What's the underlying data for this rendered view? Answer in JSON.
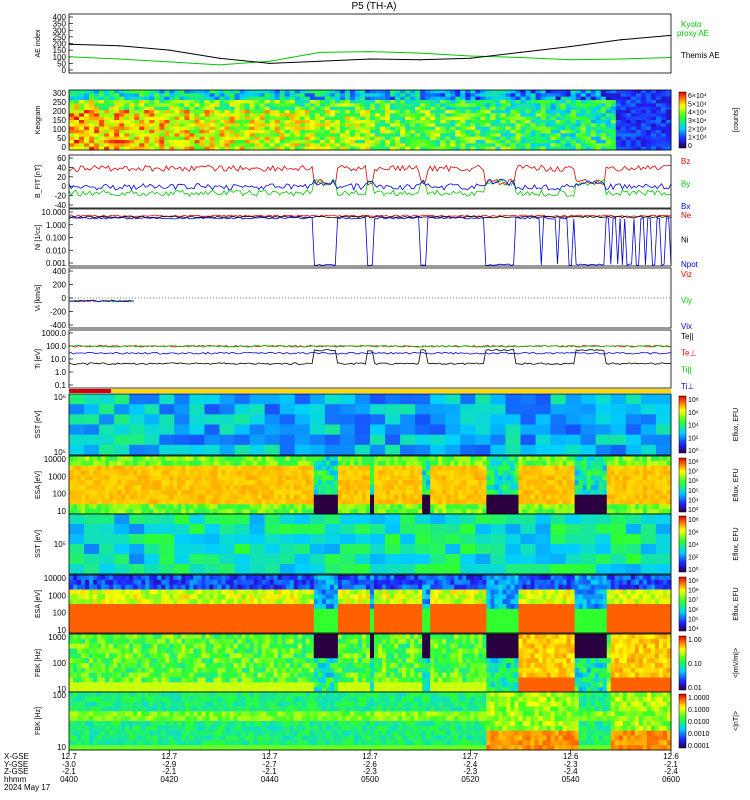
{
  "title": "P5 (TH-A)",
  "date_label": "2024 May 17",
  "colors": {
    "black": "#000000",
    "red": "#e00000",
    "green": "#00c800",
    "blue": "#0000e0",
    "yellow": "#ffe000",
    "bar_red": "#d00000",
    "bar_yellow": "#ffd800"
  },
  "orbit_rows": {
    "labels": [
      "X-GSE",
      "Y-GSE",
      "Z-GSE",
      "hhmm"
    ],
    "columns": [
      {
        "x": "12.7",
        "y": "-3.0",
        "z": "-2.1",
        "t": "0400"
      },
      {
        "x": "12.7",
        "y": "-2.9",
        "z": "-2.1",
        "t": "0420"
      },
      {
        "x": "12.7",
        "y": "-2.7",
        "z": "-2.1",
        "t": "0440"
      },
      {
        "x": "12.7",
        "y": "-2.6",
        "z": "-2.3",
        "t": "0500"
      },
      {
        "x": "12.7",
        "y": "-2.4",
        "z": "-2.3",
        "t": "0520"
      },
      {
        "x": "12.6",
        "y": "-2.3",
        "z": "-2.4",
        "t": "0540"
      },
      {
        "x": "12.6",
        "y": "-2.1",
        "z": "-2.4",
        "t": "0600"
      }
    ]
  },
  "chart_data": [
    {
      "type": "line",
      "name": "ae",
      "ylabel": "AE index",
      "ylim": [
        0,
        400
      ],
      "yticks": [
        "400",
        "350",
        "300",
        "250",
        "200",
        "150",
        "100",
        "50",
        "0"
      ],
      "legend": [
        "Kyoto",
        "proxy AE",
        "Themis AE"
      ],
      "x_minutes": [
        0,
        10,
        20,
        30,
        40,
        50,
        60,
        70,
        80,
        90,
        100,
        110,
        120
      ],
      "series": [
        {
          "name": "Kyoto proxy AE",
          "color": "green",
          "values": [
            110,
            95,
            75,
            55,
            80,
            140,
            145,
            135,
            115,
            105,
            90,
            95,
            105
          ]
        },
        {
          "name": "Themis AE",
          "color": "black",
          "values": [
            195,
            185,
            155,
            100,
            65,
            80,
            95,
            90,
            100,
            140,
            180,
            225,
            255
          ]
        }
      ]
    },
    {
      "type": "heatmap",
      "name": "keogram",
      "ylabel": "Keogram",
      "yticks": [
        "300",
        "250",
        "200",
        "150",
        "100",
        "50",
        "0"
      ],
      "colorbar_ticks": [
        "6×10⁴",
        "5×10⁴",
        "4×10⁴",
        "3×10⁴",
        "2×10⁴",
        "1×10⁴",
        "0"
      ],
      "colorbar_label": "[counts]"
    },
    {
      "type": "line",
      "name": "bfield",
      "ylabel": "B_FIT [nT]",
      "yticks": [
        "60",
        "40",
        "20",
        "0",
        "-20",
        "-40"
      ],
      "legend": [
        "Bz",
        "By",
        "Bx"
      ]
    },
    {
      "type": "line",
      "name": "density",
      "ylabel": "Ni [1/cc]",
      "yticks": [
        "10.000",
        "1.000",
        "0.100",
        "0.010",
        "0.001"
      ],
      "legend": [
        "Ne",
        "Ni",
        "Npot"
      ]
    },
    {
      "type": "line",
      "name": "velocity",
      "ylabel": "Vi [km/s]",
      "yticks": [
        "400",
        "200",
        "0",
        "-200",
        "-400"
      ],
      "legend": [
        "Viz",
        "Viy",
        "Vix"
      ]
    },
    {
      "type": "line",
      "name": "temperature",
      "ylabel": "Ti [eV]",
      "yticks": [
        "1000.0",
        "100.0",
        "10.0",
        "1.0",
        "0.1"
      ],
      "legend": [
        "Te||",
        "Te⊥",
        "Ti||",
        "Ti⊥"
      ]
    },
    {
      "type": "heatmap",
      "name": "sst_ion",
      "ylabel": "SST [eV]",
      "yticks": [
        "10⁶",
        "10⁵"
      ],
      "colorbar_ticks": [
        "10⁸",
        "10⁶",
        "10⁴",
        "10²",
        "10⁰"
      ],
      "colorbar_label": "Eflux, EFU"
    },
    {
      "type": "heatmap",
      "name": "esa_ion",
      "ylabel": "ESA [eV]",
      "yticks": [
        "10000",
        "1000",
        "100",
        "10"
      ],
      "colorbar_ticks": [
        "10⁸",
        "10⁷",
        "10⁶",
        "10⁵",
        "10⁴",
        "10³"
      ],
      "colorbar_label": "Eflux, EFU"
    },
    {
      "type": "heatmap",
      "name": "sst_elec",
      "ylabel": "SST [eV]",
      "yticks": [
        "10⁵"
      ],
      "colorbar_ticks": [
        "10⁸",
        "10⁶",
        "10⁴",
        "10²",
        "10⁰"
      ],
      "colorbar_label": "Eflux, EFU"
    },
    {
      "type": "heatmap",
      "name": "esa_elec",
      "ylabel": "ESA [eV]",
      "yticks": [
        "10000",
        "1000",
        "100",
        "10"
      ],
      "colorbar_ticks": [
        "10⁹",
        "10⁸",
        "10⁷",
        "10⁶",
        "10⁵",
        "10⁴"
      ],
      "colorbar_label": "Eflux, EFU"
    },
    {
      "type": "heatmap",
      "name": "fbk_e",
      "ylabel": "FBK [Hz]",
      "yticks": [
        "1000",
        "100",
        "10"
      ],
      "colorbar_ticks": [
        "1.00",
        "0.10",
        "0.01"
      ],
      "colorbar_label": "<|mV/m|>"
    },
    {
      "type": "heatmap",
      "name": "fbk_b",
      "ylabel": "FBK [Hz]",
      "yticks": [
        "100",
        "10"
      ],
      "colorbar_ticks": [
        "1.0000",
        "0.1000",
        "0.0100",
        "0.0010",
        "0.0001"
      ],
      "colorbar_label": "<|nT|>"
    }
  ]
}
